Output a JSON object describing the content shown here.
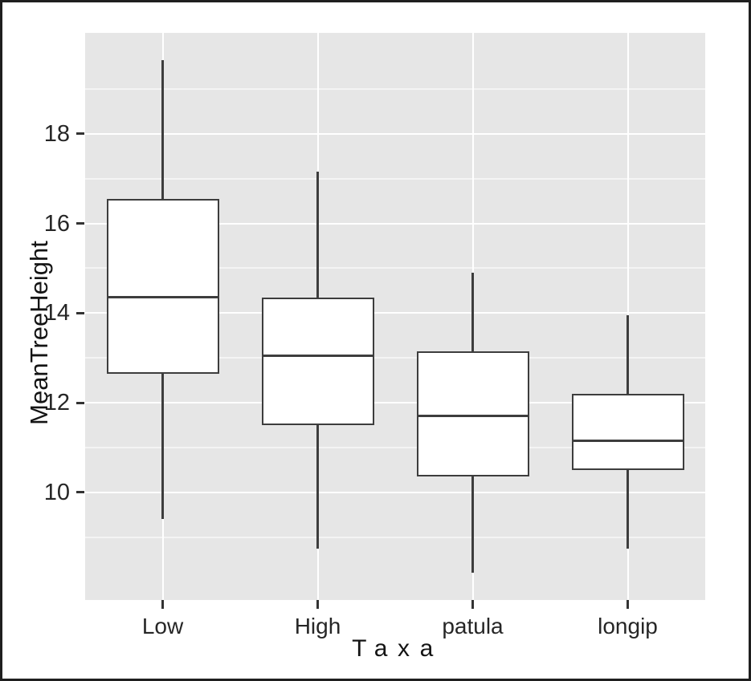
{
  "figure": {
    "y_axis_title": "MeanTreeHeight",
    "x_axis_title": "Taxa"
  },
  "chart_data": {
    "type": "boxplot",
    "title": "",
    "xlabel": "Taxa",
    "ylabel": "MeanTreeHeight",
    "categories": [
      "Low",
      "High",
      "patula",
      "longip"
    ],
    "series": [
      {
        "name": "Low",
        "whisker_low": 9.4,
        "q1": 12.65,
        "median": 14.35,
        "q3": 16.55,
        "whisker_high": 19.65
      },
      {
        "name": "High",
        "whisker_low": 8.75,
        "q1": 11.5,
        "median": 13.05,
        "q3": 14.35,
        "whisker_high": 17.15
      },
      {
        "name": "patula",
        "whisker_low": 8.2,
        "q1": 10.35,
        "median": 11.7,
        "q3": 13.15,
        "whisker_high": 14.9
      },
      {
        "name": "longip",
        "whisker_low": 8.75,
        "q1": 10.5,
        "median": 11.15,
        "q3": 12.2,
        "whisker_high": 13.95
      }
    ],
    "ylim": [
      7.6,
      20.25
    ],
    "y_major_ticks": [
      10,
      12,
      14,
      16,
      18
    ],
    "y_minor_gridlines": [
      9,
      11,
      13,
      15,
      17,
      19
    ],
    "grid": true,
    "legend": "none",
    "colors": {
      "panel_background": "#e6e6e6",
      "gridline": "#ffffff",
      "box_fill": "#ffffff",
      "box_line": "#3d3d3d",
      "axis_text": "#262626",
      "frame": "#1f1f1f"
    }
  }
}
